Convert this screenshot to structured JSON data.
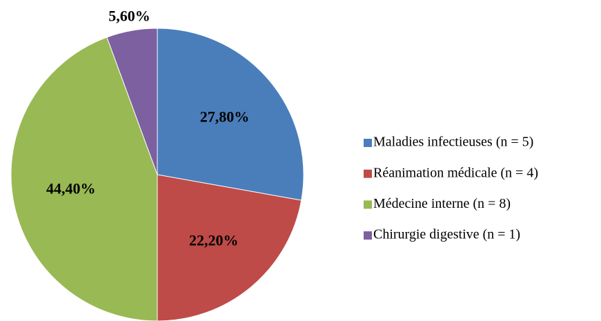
{
  "chart_data": {
    "type": "pie",
    "categories": [
      "Maladies infectieuses (n = 5)",
      "Réanimation médicale (n = 4)",
      "Médecine interne (n = 8)",
      "Chirurgie digestive (n = 1)"
    ],
    "values": [
      27.8,
      22.2,
      44.4,
      5.6
    ],
    "value_labels": [
      "27,80%",
      "22,20%",
      "44,40%",
      "5,60%"
    ],
    "colors": [
      "#4a7ebb",
      "#be4b48",
      "#98b954",
      "#7d60a0"
    ],
    "legend": "right"
  }
}
